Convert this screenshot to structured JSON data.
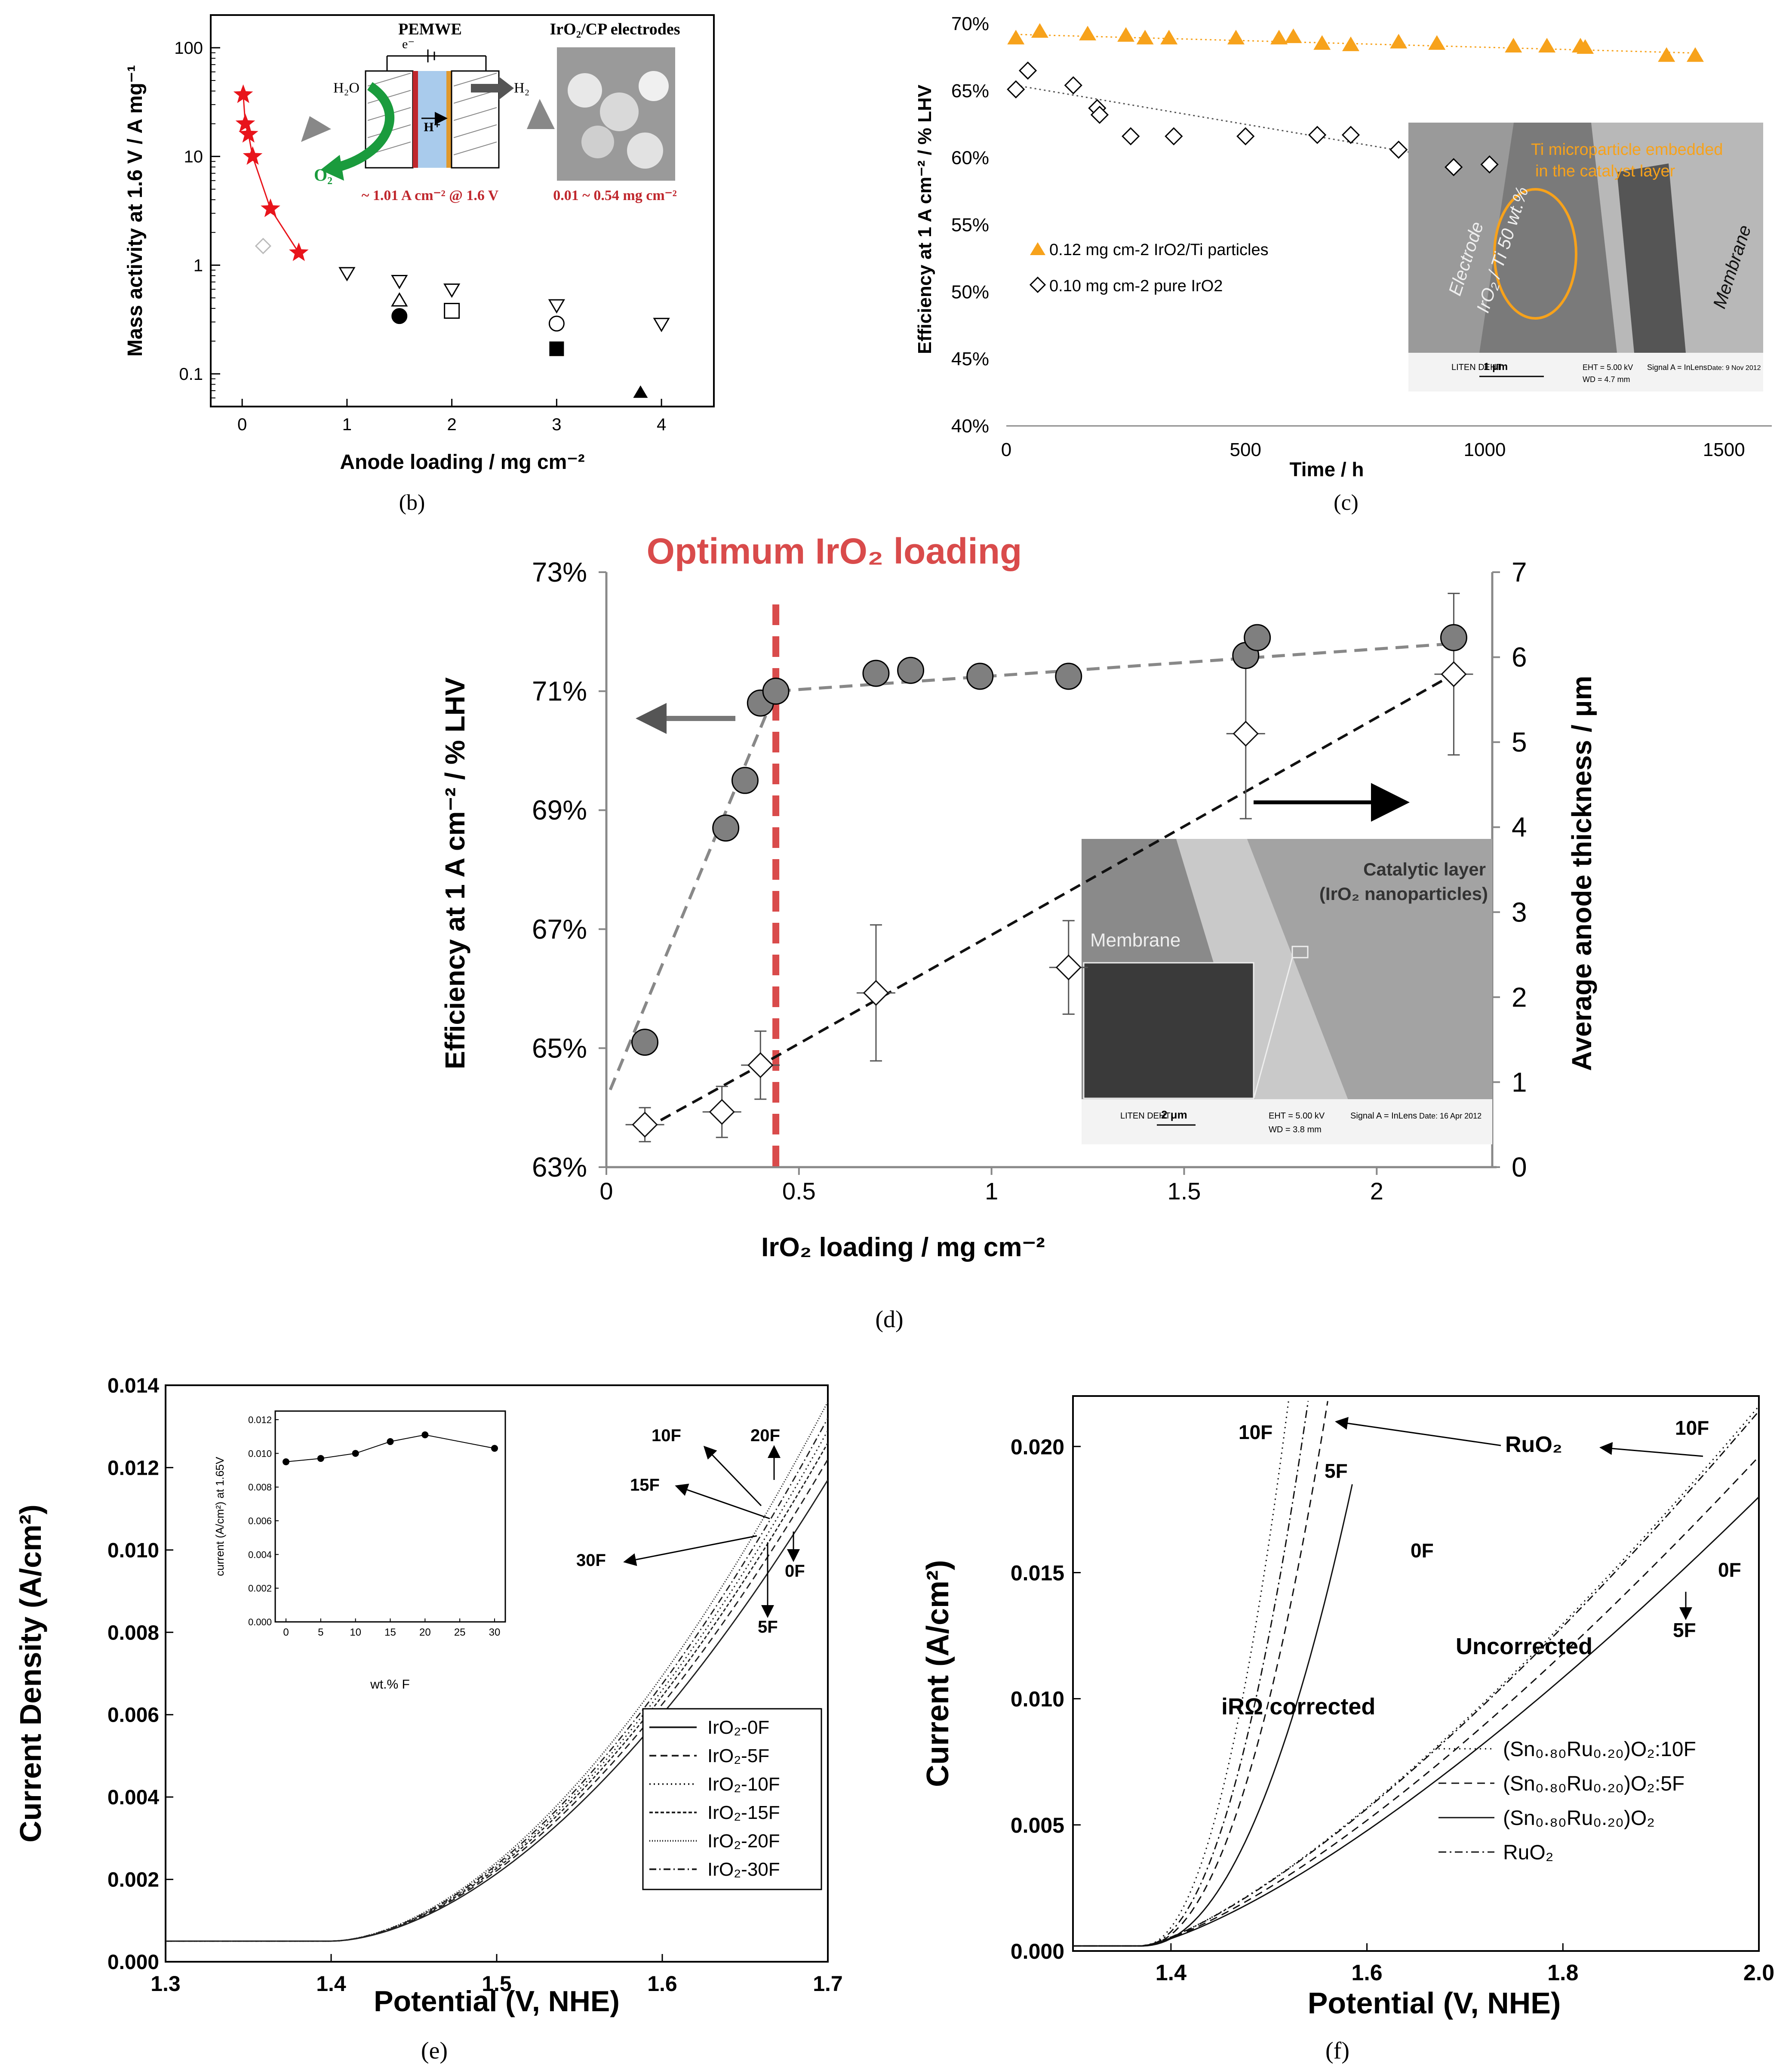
{
  "panel_labels": {
    "b": "(b)",
    "c": "(c)",
    "d": "(d)",
    "e": "(e)",
    "f": "(f)"
  },
  "colors": {
    "red_star": "#e8141b",
    "orange": "#f7a21b",
    "dashed_red": "#d94b4b",
    "gray_marker": "#7f7f7f"
  },
  "chart_data": [
    {
      "id": "b",
      "type": "scatter",
      "xlabel": "Anode loading / mg cm⁻²",
      "ylabel": "Mass activity at 1.6 V / A mg⁻¹",
      "xlim": [
        -0.3,
        4.5
      ],
      "ylim": [
        0.05,
        200
      ],
      "yscale": "log",
      "xticks": [
        "0",
        "1",
        "2",
        "3",
        "4"
      ],
      "yticks": [
        "0.1",
        "1",
        "10",
        "100"
      ],
      "series": [
        {
          "name": "IrO2/CP electrodes",
          "marker": "star",
          "color": "#e8141b",
          "x": [
            0.01,
            0.03,
            0.06,
            0.1,
            0.27,
            0.54
          ],
          "y": [
            37,
            20,
            16,
            10,
            3.3,
            1.3
          ]
        },
        {
          "name": "other (open triangle down)",
          "marker": "triangle-down-open",
          "x": [
            1.0,
            1.5,
            2.0,
            3.0,
            4.0
          ],
          "y": [
            0.85,
            0.72,
            0.6,
            0.43,
            0.29
          ]
        },
        {
          "name": "other (open diamond)",
          "marker": "diamond-open",
          "x": [
            0.2
          ],
          "y": [
            1.5
          ]
        },
        {
          "name": "other (open triangle up)",
          "marker": "triangle-up-open",
          "x": [
            1.5
          ],
          "y": [
            0.47
          ]
        },
        {
          "name": "other (filled circle)",
          "marker": "circle-filled",
          "x": [
            1.5
          ],
          "y": [
            0.34
          ]
        },
        {
          "name": "other (open square)",
          "marker": "square-open",
          "x": [
            2.0
          ],
          "y": [
            0.38
          ]
        },
        {
          "name": "other (open circle)",
          "marker": "circle-open",
          "x": [
            3.0
          ],
          "y": [
            0.29
          ]
        },
        {
          "name": "other (filled square)",
          "marker": "square-filled",
          "x": [
            3.0
          ],
          "y": [
            0.17
          ]
        },
        {
          "name": "other (filled triangle)",
          "marker": "triangle-up-filled",
          "x": [
            3.8
          ],
          "y": [
            0.067
          ]
        }
      ],
      "inset": {
        "pemwe_title": "PEMWE",
        "electrodes_title": "IrO₂/CP electrodes",
        "h2o": "H₂O",
        "h2": "H₂",
        "hplus": "H⁺",
        "o2": "O₂",
        "electron": "e⁻",
        "current_note": "~ 1.01 A cm⁻² @ 1.6 V",
        "loading_note": "0.01 ~ 0.54 mg cm⁻²"
      }
    },
    {
      "id": "c",
      "type": "scatter",
      "xlabel": "Time / h",
      "ylabel": "Efficiency at 1 A cm⁻² / % LHV",
      "xlim": [
        0,
        1600
      ],
      "ylim": [
        40,
        70
      ],
      "xticks": [
        "0",
        "500",
        "1000",
        "1500"
      ],
      "yticks": [
        "40%",
        "45%",
        "50%",
        "55%",
        "60%",
        "65%",
        "70%"
      ],
      "series": [
        {
          "name": "0.12 mg cm-2 IrO2/Ti particles",
          "marker": "triangle-up-filled",
          "color": "#f7a21b",
          "x": [
            20,
            70,
            170,
            250,
            290,
            340,
            480,
            570,
            600,
            660,
            720,
            820,
            900,
            1060,
            1130,
            1200,
            1210,
            1380,
            1440
          ],
          "y": [
            68.9,
            69.4,
            69.2,
            69.1,
            68.9,
            68.9,
            68.9,
            68.9,
            69.0,
            68.5,
            68.4,
            68.6,
            68.5,
            68.3,
            68.3,
            68.3,
            68.2,
            67.6,
            67.6
          ]
        },
        {
          "name": "0.10 mg cm-2  pure IrO2",
          "marker": "diamond-open",
          "x": [
            20,
            45,
            140,
            190,
            195,
            260,
            350,
            500,
            650,
            720,
            820,
            935,
            1010
          ],
          "y": [
            65.1,
            66.5,
            65.4,
            63.7,
            63.2,
            61.6,
            61.6,
            61.6,
            61.7,
            61.7,
            60.6,
            59.3,
            59.5
          ]
        }
      ],
      "inset": {
        "annotation": "Ti microparticle embedded in the catalyst layer",
        "electrode_label": "Electrode",
        "composition_label": "IrO₂ / Ti 50 wt.%",
        "membrane_label": "Membrane",
        "scale_text": "1 μm",
        "org_text": "LITEN DEHT",
        "sem_info_1": "EHT = 5.00 kV",
        "sem_info_2": "WD = 4.7 mm",
        "sem_info_3": "Signal A = InLens",
        "sem_info_4": "Date: 9 Nov 2012"
      }
    },
    {
      "id": "d",
      "type": "scatter",
      "title": "Optimum IrO₂ loading",
      "xlabel": "IrO₂ loading / mg cm⁻²",
      "ylabel_left": "Efficiency at 1 A cm⁻² / % LHV",
      "ylabel_right": "Average anode thickness / μm",
      "xlim": [
        0,
        2.3
      ],
      "ylim_left": [
        63,
        73
      ],
      "ylim_right": [
        0,
        7
      ],
      "xticks": [
        "0",
        "0.5",
        "1",
        "1.5",
        "2"
      ],
      "yticks_left": [
        "63%",
        "65%",
        "67%",
        "69%",
        "71%",
        "73%"
      ],
      "yticks_right": [
        "0",
        "1",
        "2",
        "3",
        "4",
        "5",
        "6",
        "7"
      ],
      "optimum_x": 0.44,
      "series": [
        {
          "name": "Efficiency",
          "axis": "left",
          "marker": "circle-filled",
          "color": "#7f7f7f",
          "x": [
            0.1,
            0.31,
            0.36,
            0.4,
            0.44,
            0.7,
            0.79,
            0.97,
            1.2,
            1.66,
            1.69,
            2.2
          ],
          "y": [
            65.1,
            68.7,
            69.5,
            70.8,
            71.0,
            71.3,
            71.35,
            71.25,
            71.25,
            71.6,
            71.9,
            71.9
          ]
        },
        {
          "name": "Anode thickness",
          "axis": "right",
          "marker": "diamond-open",
          "x": [
            0.1,
            0.3,
            0.4,
            0.7,
            1.2,
            1.66,
            2.2
          ],
          "y": [
            0.5,
            0.65,
            1.2,
            2.05,
            2.35,
            5.1,
            5.8
          ],
          "err": [
            0.2,
            0.3,
            0.4,
            0.8,
            0.55,
            1.0,
            0.95
          ]
        }
      ],
      "inset": {
        "catalytic_layer": "Catalytic layer",
        "nanoparticles": "(IrO₂ nanoparticles)",
        "membrane": "Membrane",
        "scale_text": "2 μm",
        "org_text": "LITEN DEHT",
        "sem_info_1": "EHT = 5.00 kV",
        "sem_info_2": "WD = 3.8 mm",
        "sem_info_3": "Signal A = InLens",
        "sem_info_4": "Date: 16 Apr 2012"
      }
    },
    {
      "id": "e",
      "type": "line",
      "xlabel": "Potential (V, NHE)",
      "ylabel": "Current Density (A/cm²)",
      "xlim": [
        1.3,
        1.7
      ],
      "ylim": [
        0,
        0.014
      ],
      "xticks": [
        "1.3",
        "1.4",
        "1.5",
        "1.6",
        "1.7"
      ],
      "yticks": [
        "0.000",
        "0.002",
        "0.004",
        "0.006",
        "0.008",
        "0.010",
        "0.012",
        "0.014"
      ],
      "onset": 1.4,
      "base_current": 0.0005,
      "series": [
        {
          "name": "IrO2-0F",
          "value_at_1_7": 0.0117,
          "dash": "solid"
        },
        {
          "name": "IrO2-5F",
          "value_at_1_7": 0.0122,
          "dash": "dashed"
        },
        {
          "name": "IrO2-10F",
          "value_at_1_7": 0.0129,
          "dash": "dotted"
        },
        {
          "name": "IrO2-15F",
          "value_at_1_7": 0.0126,
          "dash": "short"
        },
        {
          "name": "IrO2-20F",
          "value_at_1_7": 0.0136,
          "dash": "fine"
        },
        {
          "name": "IrO2-30F",
          "value_at_1_7": 0.0132,
          "dash": "dashdot"
        }
      ],
      "legend_labels": [
        "IrO₂-0F",
        "IrO₂-5F",
        "IrO₂-10F",
        "IrO₂-15F",
        "IrO₂-20F",
        "IrO₂-30F"
      ],
      "curve_labels": [
        "10F",
        "20F",
        "15F",
        "30F",
        "0F",
        "5F"
      ],
      "inset": {
        "xlabel": "wt.% F",
        "ylabel": "current (A/cm²) at 1.65V",
        "x": [
          0,
          5,
          10,
          15,
          20,
          30
        ],
        "y": [
          0.0095,
          0.0097,
          0.01,
          0.0107,
          0.0111,
          0.0103
        ],
        "xticks": [
          "0",
          "5",
          "10",
          "15",
          "20",
          "25",
          "30"
        ],
        "yticks": [
          "0.000",
          "0.002",
          "0.004",
          "0.006",
          "0.008",
          "0.010",
          "0.012"
        ]
      }
    },
    {
      "id": "f",
      "type": "line",
      "xlabel": "Potential (V, NHE)",
      "ylabel": "Current (A/cm²)",
      "xlim": [
        1.3,
        2.0
      ],
      "ylim": [
        0,
        0.022
      ],
      "xticks": [
        "1.4",
        "1.6",
        "1.8",
        "2.0"
      ],
      "yticks": [
        "0.000",
        "0.005",
        "0.010",
        "0.015",
        "0.020"
      ],
      "series": [
        {
          "name": "(Sn0.80Ru0.20)O2:10F",
          "dash": "dotted",
          "uncorrected_end": 0.0216,
          "corrected_end_x": 1.52
        },
        {
          "name": "(Sn0.80Ru0.20)O2:5F",
          "dash": "dashed",
          "uncorrected_end": 0.0196,
          "corrected_end_x": 1.56
        },
        {
          "name": "(Sn0.80Ru0.20)O2",
          "dash": "solid",
          "uncorrected_end": 0.018,
          "corrected_end_x": 1.585
        },
        {
          "name": "RuO2",
          "dash": "dashdot",
          "uncorrected_end": 0.0214,
          "corrected_end_x": 1.54
        }
      ],
      "legend_labels": [
        "(Sn₀.₈₀Ru₀.₂₀)O₂:10F",
        "(Sn₀.₈₀Ru₀.₂₀)O₂:5F",
        "(Sn₀.₈₀Ru₀.₂₀)O₂",
        "RuO₂"
      ],
      "annotations": {
        "ruo2": "RuO₂",
        "corrected": "iRΩ corrected",
        "uncorrected": "Uncorrected",
        "l10F_a": "10F",
        "l5F_a": "5F",
        "l0F_a": "0F",
        "l10F_b": "10F",
        "l0F_b": "0F",
        "l5F_b": "5F"
      }
    }
  ]
}
